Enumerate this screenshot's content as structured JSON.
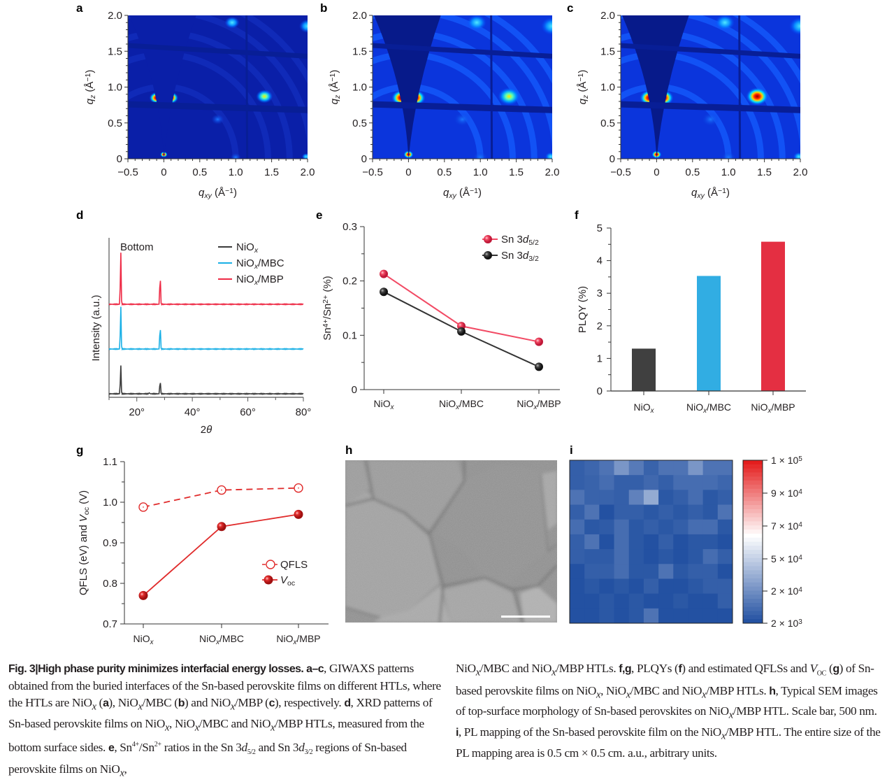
{
  "figure": {
    "panel_labels": [
      "a",
      "b",
      "c",
      "d",
      "e",
      "f",
      "g",
      "h",
      "i"
    ]
  },
  "chart_data": [
    {
      "panel": "a",
      "type": "heatmap",
      "title": "GIWAXS pattern - NiOx",
      "xlabel": "q_xy (Å⁻¹)",
      "ylabel": "q_z (Å⁻¹)",
      "xlim": [
        -0.5,
        2.0
      ],
      "ylim": [
        0,
        2.0
      ],
      "xticks": [
        "−0.5",
        "0",
        "0.5",
        "1.0",
        "1.5",
        "2.0"
      ],
      "yticks": [
        "0",
        "0.5",
        "1.0",
        "1.5",
        "2.0"
      ],
      "features": [
        {
          "q_xy": -0.1,
          "q_z": 0.85,
          "intensity": "high"
        },
        {
          "q_xy": 0.1,
          "q_z": 0.85,
          "intensity": "high"
        },
        {
          "q_xy": 1.4,
          "q_z": 0.87,
          "intensity": "medium"
        },
        {
          "q_xy": 0.0,
          "q_z": 0.05,
          "intensity": "high"
        }
      ]
    },
    {
      "panel": "b",
      "type": "heatmap",
      "title": "GIWAXS pattern - NiOx/MBC",
      "xlabel": "q_xy (Å⁻¹)",
      "ylabel": "q_z (Å⁻¹)",
      "xlim": [
        -0.5,
        2.0
      ],
      "ylim": [
        0,
        2.0
      ],
      "xticks": [
        "−0.5",
        "0",
        "0.5",
        "1.0",
        "1.5",
        "2.0"
      ],
      "yticks": [
        "0",
        "0.5",
        "1.0",
        "1.5",
        "2.0"
      ],
      "features": [
        {
          "q_xy": -0.1,
          "q_z": 0.85,
          "intensity": "very high"
        },
        {
          "q_xy": 0.1,
          "q_z": 0.85,
          "intensity": "very high"
        },
        {
          "q_xy": 1.4,
          "q_z": 0.87,
          "intensity": "high"
        },
        {
          "q_xy": 0.0,
          "q_z": 0.05,
          "intensity": "very high"
        }
      ]
    },
    {
      "panel": "c",
      "type": "heatmap",
      "title": "GIWAXS pattern - NiOx/MBP",
      "xlabel": "q_xy (Å⁻¹)",
      "ylabel": "q_z (Å⁻¹)",
      "xlim": [
        -0.5,
        2.0
      ],
      "ylim": [
        0,
        2.0
      ],
      "xticks": [
        "−0.5",
        "0",
        "0.5",
        "1.0",
        "1.5",
        "2.0"
      ],
      "yticks": [
        "0",
        "0.5",
        "1.0",
        "1.5",
        "2.0"
      ],
      "features": [
        {
          "q_xy": -0.1,
          "q_z": 0.85,
          "intensity": "very high"
        },
        {
          "q_xy": 0.1,
          "q_z": 0.85,
          "intensity": "very high"
        },
        {
          "q_xy": 1.4,
          "q_z": 0.87,
          "intensity": "very high"
        },
        {
          "q_xy": 0.0,
          "q_z": 0.05,
          "intensity": "very high"
        }
      ]
    },
    {
      "panel": "d",
      "type": "line",
      "title": "Bottom",
      "xlabel": "2θ",
      "ylabel": "Intensity (a.u.)",
      "xlim": [
        10,
        80
      ],
      "xticks": [
        "20°",
        "40°",
        "60°",
        "80°"
      ],
      "legend": "top-right",
      "series": [
        {
          "name": "NiOx",
          "color": "#3a3a3a",
          "offset": 0,
          "peaks": [
            {
              "x": 14.2,
              "height": 0.55
            },
            {
              "x": 28.4,
              "height": 0.27
            },
            {
              "x": 24.5,
              "height": 0.02
            }
          ]
        },
        {
          "name": "NiOx/MBC",
          "color": "#1ab0e6",
          "offset": 1,
          "peaks": [
            {
              "x": 14.2,
              "height": 0.82
            },
            {
              "x": 28.4,
              "height": 0.47
            }
          ]
        },
        {
          "name": "NiOx/MBP",
          "color": "#ee2a45",
          "offset": 2,
          "peaks": [
            {
              "x": 14.2,
              "height": 1.0
            },
            {
              "x": 28.4,
              "height": 0.58
            }
          ]
        }
      ]
    },
    {
      "panel": "e",
      "type": "line",
      "xlabel": "",
      "ylabel": "Sn⁴⁺/Sn²⁺ (%)",
      "ylim": [
        0,
        0.3
      ],
      "yticks": [
        "0",
        "0.1",
        "0.2",
        "0.3"
      ],
      "categories": [
        "NiOx",
        "NiOx/MBC",
        "NiOx/MBP"
      ],
      "legend": "top-right",
      "series": [
        {
          "name": "Sn 3d5/2",
          "color": "#f24a64",
          "values": [
            0.213,
            0.117,
            0.088
          ]
        },
        {
          "name": "Sn 3d3/2",
          "color": "#333333",
          "values": [
            0.18,
            0.107,
            0.042
          ]
        }
      ]
    },
    {
      "panel": "f",
      "type": "bar",
      "xlabel": "",
      "ylabel": "PLQY (%)",
      "ylim": [
        0,
        5
      ],
      "yticks": [
        "0",
        "1",
        "2",
        "3",
        "4",
        "5"
      ],
      "categories": [
        "NiOx",
        "NiOx/MBC",
        "NiOx/MBP"
      ],
      "values": [
        1.3,
        3.53,
        4.58
      ],
      "colors": [
        "#404040",
        "#31ade3",
        "#e42f42"
      ]
    },
    {
      "panel": "g",
      "type": "line",
      "xlabel": "",
      "ylabel": "QFLS (eV) and Voc (V)",
      "ylim": [
        0.7,
        1.1
      ],
      "yticks": [
        "0.7",
        "0.8",
        "0.9",
        "1.0",
        "1.1"
      ],
      "categories": [
        "NiOx",
        "NiOx/MBC",
        "NiOx/MBP"
      ],
      "legend": "center-right",
      "series": [
        {
          "name": "QFLS",
          "color": "#e02b2b",
          "style": "dashed-open",
          "values": [
            0.988,
            1.03,
            1.035
          ]
        },
        {
          "name": "Voc",
          "color": "#e02b2b",
          "style": "solid-filled",
          "values": [
            0.77,
            0.94,
            0.97
          ]
        }
      ]
    },
    {
      "panel": "i",
      "type": "heatmap",
      "title": "PL mapping NiOx/MBP",
      "colorbar": {
        "ticks": [
          "1 × 10⁵",
          "9 × 10⁴",
          "7 × 10⁴",
          "5 × 10⁴",
          "2 × 10⁴",
          "2 × 10³"
        ],
        "min": 2000,
        "max": 100000,
        "colors": [
          "#1a4a9e",
          "#ffffff",
          "#e41e1e"
        ]
      },
      "grid_values": [
        [
          0.15,
          0.2,
          0.3,
          0.55,
          0.35,
          0.18,
          0.3,
          0.3,
          0.55,
          0.3,
          0.3
        ],
        [
          0.15,
          0.18,
          0.25,
          0.15,
          0.15,
          0.22,
          0.15,
          0.25,
          0.25,
          0.25,
          0.2
        ],
        [
          0.3,
          0.18,
          0.18,
          0.15,
          0.4,
          0.7,
          0.1,
          0.15,
          0.25,
          0.1,
          0.15
        ],
        [
          0.15,
          0.3,
          0.05,
          0.15,
          0.15,
          0.1,
          0.15,
          0.1,
          0.15,
          0.1,
          0.3
        ],
        [
          0.25,
          0.1,
          0.12,
          0.25,
          0.1,
          0.15,
          0.1,
          0.15,
          0.25,
          0.25,
          0.1
        ],
        [
          0.15,
          0.3,
          0.05,
          0.25,
          0.1,
          0.05,
          0.15,
          0.05,
          0.1,
          0.1,
          0.05
        ],
        [
          0.15,
          0.12,
          0.12,
          0.25,
          0.1,
          0.05,
          0.1,
          0.05,
          0.1,
          0.25,
          0.15
        ],
        [
          0.05,
          0.15,
          0.15,
          0.25,
          0.1,
          0.1,
          0.3,
          0.1,
          0.15,
          0.15,
          0.05
        ],
        [
          0.05,
          0.1,
          0.05,
          0.1,
          0.05,
          0.15,
          0.05,
          0.05,
          0.1,
          0.15,
          0.15
        ],
        [
          0.05,
          0.05,
          0.1,
          0.05,
          0.1,
          0.05,
          0.05,
          0.1,
          0.05,
          0.05,
          0.15
        ],
        [
          0.05,
          0.05,
          0.1,
          0.05,
          0.1,
          0.3,
          0.05,
          0.05,
          0.05,
          0.05,
          0.05
        ]
      ]
    }
  ],
  "sem": {
    "panel": "h",
    "scale_bar": "500 nm"
  },
  "caption": {
    "left": {
      "fig": "Fig. 3",
      "sep": "|",
      "title": "High phase purity minimizes interfacial energy losses.",
      "ac": "a–c",
      "t1": ", GIWAXS patterns obtained from the buried interfaces of the Sn-based perovskite films on different HTLs, where the HTLs are NiO",
      "t2": " (",
      "t3": "), NiO",
      "t4": "/MBC (",
      "t5": ") and NiO",
      "t6": "/MBP (",
      "t7": "), respectively. ",
      "t8": ", XRD patterns of Sn-based perovskite films on NiO",
      "t9": ", NiO",
      "t10": "/MBC and NiO",
      "t11": "/MBP HTLs, measured from the bottom surface sides. ",
      "t12": ", Sn",
      "t13": "/Sn",
      "t14": " ratios in the Sn 3",
      "t15": " and Sn 3",
      "t16": " regions of Sn-based perovskite films on NiO",
      "t17": ","
    },
    "right": {
      "r1": "NiO",
      "r2": "/MBC and NiO",
      "r3": "/MBP HTLs. ",
      "fg": "f,g",
      "r4": ", PLQYs (",
      "r5": ") and estimated QFLSs and ",
      "r6": " (",
      "r7": ") of Sn-based perovskite films on NiO",
      "r8": ", NiO",
      "r9": "/MBC and NiO",
      "r10": "/MBP HTLs. ",
      "r11": ", Typical SEM images of top-surface morphology of Sn-based perovskites on NiO",
      "r12": "/MBP HTL. Scale bar, 500 nm. ",
      "r13": ", PL mapping of the Sn-based perovskite film on the NiO",
      "r14": "/MBP HTL. The entire size of the PL mapping area is 0.5 cm × 0.5 cm. a.u., arbitrary units."
    }
  },
  "text": {
    "x": "x",
    "a": "a",
    "b": "b",
    "c": "c",
    "d": "d",
    "e": "e",
    "f": "f",
    "g": "g",
    "h": "h",
    "i": "i",
    "sup4": "4+",
    "sup2": "2+",
    "V": "V",
    "OC": "OC",
    "d52": "5/2",
    "d32": "3/2",
    "italic_d": "d"
  }
}
